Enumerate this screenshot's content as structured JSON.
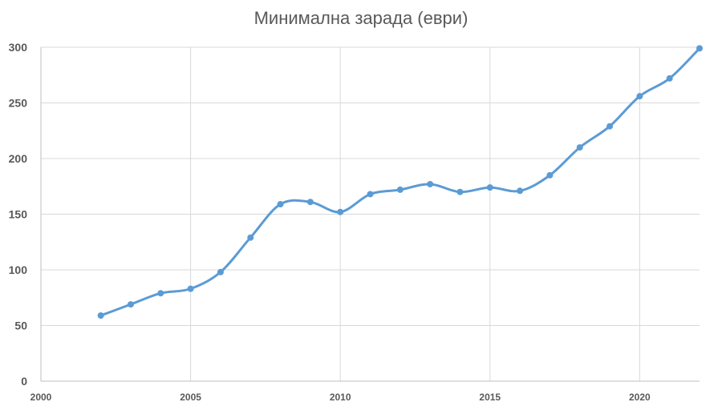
{
  "chart_data": {
    "type": "line",
    "title": "Минимална зарада (еври)",
    "xlabel": "",
    "ylabel": "",
    "xlim": [
      2000,
      2022
    ],
    "ylim": [
      0,
      300
    ],
    "xticks": [
      2000,
      2005,
      2010,
      2015,
      2020
    ],
    "yticks": [
      0,
      50,
      100,
      150,
      200,
      250,
      300
    ],
    "grid": true,
    "smooth": true,
    "series": [
      {
        "x": [
          2002,
          2003,
          2004,
          2005,
          2006,
          2007,
          2008,
          2009,
          2010,
          2011,
          2012,
          2013,
          2014,
          2015,
          2016,
          2017,
          2018,
          2019,
          2020,
          2021,
          2022
        ],
        "values": [
          59,
          69,
          79,
          83,
          98,
          129,
          159,
          161,
          152,
          168,
          172,
          177,
          170,
          174,
          171,
          185,
          210,
          229,
          256,
          272,
          299
        ],
        "color": "#5B9BD5"
      }
    ]
  }
}
